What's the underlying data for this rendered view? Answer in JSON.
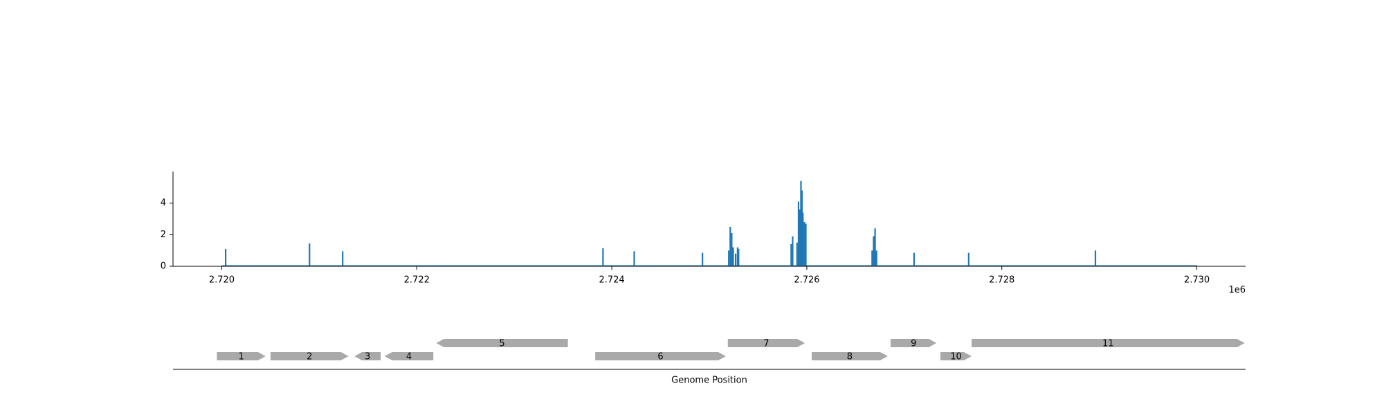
{
  "chart_data": {
    "type": "bar",
    "xlabel": "Genome Position",
    "ylabel": "",
    "x_offset_label": "1e6",
    "xlim": [
      2719500,
      2730500
    ],
    "ylim": [
      0,
      6
    ],
    "x_ticks": [
      2720000,
      2722000,
      2724000,
      2726000,
      2728000,
      2730000
    ],
    "x_tick_labels": [
      "2.720",
      "2.722",
      "2.724",
      "2.726",
      "2.728",
      "2.730"
    ],
    "y_ticks": [
      0,
      2,
      4
    ],
    "y_tick_labels": [
      "0",
      "2",
      "4"
    ],
    "grid": false,
    "baseline_range": [
      2720000,
      2730000
    ],
    "coverage": {
      "x": [
        2720040,
        2720900,
        2721240,
        2723910,
        2724230,
        2724930,
        2725200,
        2725215,
        2725230,
        2725245,
        2725270,
        2725290,
        2725300,
        2725840,
        2725855,
        2725900,
        2725915,
        2725930,
        2725940,
        2725950,
        2725960,
        2725975,
        2725990,
        2726670,
        2726685,
        2726700,
        2726715,
        2727100,
        2727660,
        2728960
      ],
      "y": [
        1.1,
        1.45,
        0.95,
        1.15,
        0.95,
        0.85,
        1.0,
        2.5,
        2.1,
        1.2,
        0.8,
        1.2,
        1.1,
        1.4,
        1.9,
        1.5,
        4.1,
        3.6,
        5.4,
        4.8,
        3.4,
        2.8,
        2.7,
        1.0,
        1.9,
        2.4,
        1.0,
        0.85,
        0.85,
        1.0
      ]
    },
    "color": "#1f77b4"
  },
  "genes": [
    {
      "label": "1",
      "start": 2719950,
      "end": 2720450,
      "strand": "+",
      "row": 0
    },
    {
      "label": "2",
      "start": 2720500,
      "end": 2721300,
      "strand": "+",
      "row": 0
    },
    {
      "label": "3",
      "start": 2721360,
      "end": 2721630,
      "strand": "-",
      "row": 0
    },
    {
      "label": "4",
      "start": 2721670,
      "end": 2722170,
      "strand": "-",
      "row": 0
    },
    {
      "label": "5",
      "start": 2722200,
      "end": 2723550,
      "strand": "-",
      "row": 1
    },
    {
      "label": "6",
      "start": 2723830,
      "end": 2725170,
      "strand": "+",
      "row": 0
    },
    {
      "label": "7",
      "start": 2725190,
      "end": 2725980,
      "strand": "+",
      "row": 1
    },
    {
      "label": "8",
      "start": 2726050,
      "end": 2726830,
      "strand": "+",
      "row": 0
    },
    {
      "label": "9",
      "start": 2726860,
      "end": 2727330,
      "strand": "+",
      "row": 1
    },
    {
      "label": "10",
      "start": 2727370,
      "end": 2727690,
      "strand": "+",
      "row": 0
    },
    {
      "label": "11",
      "start": 2727690,
      "end": 2730490,
      "strand": "+",
      "row": 1
    }
  ],
  "gene_color": "#a9a9a9"
}
